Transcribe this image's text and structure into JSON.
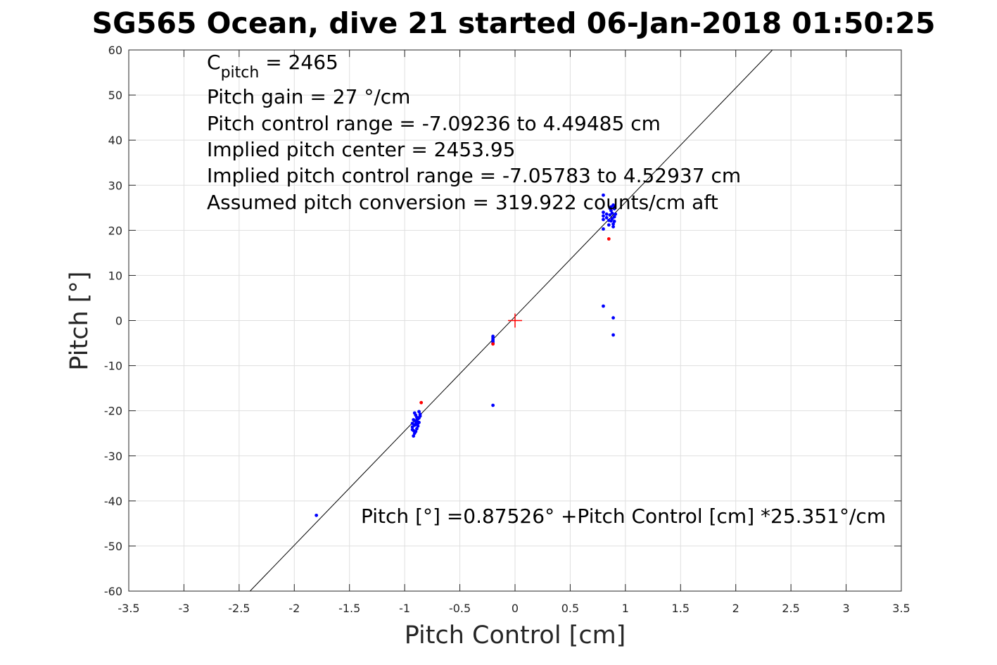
{
  "chart_data": {
    "type": "scatter",
    "title": "SG565 Ocean, dive 21 started 06-Jan-2018 01:50:25",
    "xlabel": "Pitch Control [cm]",
    "ylabel": "Pitch [°]",
    "xlim": [
      -3.5,
      3.5
    ],
    "ylim": [
      -60,
      60
    ],
    "xticks": [
      "-3.5",
      "-3",
      "-2.5",
      "-2",
      "-1.5",
      "-1",
      "-0.5",
      "0",
      "0.5",
      "1",
      "1.5",
      "2",
      "2.5",
      "3",
      "3.5"
    ],
    "yticks": [
      "60",
      "50",
      "40",
      "30",
      "20",
      "10",
      "0",
      "-10",
      "-20",
      "-30",
      "-40",
      "-50",
      "-60"
    ],
    "grid": true,
    "annotations": {
      "cpitch_main": "C",
      "cpitch_sub": "pitch",
      "cpitch_value": " = 2465",
      "gain": "Pitch gain = 27 °/cm",
      "control_range": "Pitch control range = -7.09236 to 4.49485 cm",
      "implied_center": "Implied pitch center = 2453.95",
      "implied_range": "Implied pitch control range = -7.05783 to 4.52937 cm",
      "conversion": "Assumed pitch conversion = 319.922 counts/cm aft",
      "fit_equation": "Pitch [°] =0.87526° +Pitch Control [cm] *25.351°/cm"
    },
    "fit_line": {
      "intercept": 0.87526,
      "slope": 25.351,
      "color": "#000000"
    },
    "center_marker": {
      "x": 0,
      "y": 0,
      "color": "#ff0000"
    },
    "series": [
      {
        "color": "#0000ff",
        "points": [
          [
            -1.8,
            -43.2
          ],
          [
            -0.2,
            -18.8
          ],
          [
            -0.2,
            -3.5
          ],
          [
            -0.2,
            -3.9
          ],
          [
            -0.2,
            -4.3
          ],
          [
            -0.2,
            -4.7
          ],
          [
            -0.2,
            -5.1
          ],
          [
            0.8,
            3.2
          ],
          [
            0.89,
            0.6
          ],
          [
            0.89,
            -3.2
          ],
          [
            -0.91,
            -20.5
          ],
          [
            -0.9,
            -21.0
          ],
          [
            -0.89,
            -21.5
          ],
          [
            -0.92,
            -22.0
          ],
          [
            -0.9,
            -22.4
          ],
          [
            -0.88,
            -22.8
          ],
          [
            -0.91,
            -23.2
          ],
          [
            -0.93,
            -23.6
          ],
          [
            -0.89,
            -24.0
          ],
          [
            -0.92,
            -24.4
          ],
          [
            -0.91,
            -25.0
          ],
          [
            -0.92,
            -25.6
          ],
          [
            -0.87,
            -20.2
          ],
          [
            -0.86,
            -21.2
          ],
          [
            -0.88,
            -21.8
          ],
          [
            -0.87,
            -22.6
          ],
          [
            -0.9,
            -23.0
          ],
          [
            -0.93,
            -22.8
          ],
          [
            -0.89,
            -22.2
          ],
          [
            -0.86,
            -20.8
          ],
          [
            -0.9,
            -24.6
          ],
          [
            -0.93,
            -24.2
          ],
          [
            -0.88,
            -23.4
          ],
          [
            -0.87,
            -21.6
          ],
          [
            0.8,
            27.8
          ],
          [
            0.8,
            24.0
          ],
          [
            0.8,
            23.2
          ],
          [
            0.8,
            22.4
          ],
          [
            0.8,
            20.3
          ],
          [
            0.83,
            22.8
          ],
          [
            0.83,
            23.6
          ],
          [
            0.85,
            22.2
          ],
          [
            0.86,
            23.4
          ],
          [
            0.87,
            24.4
          ],
          [
            0.87,
            25.2
          ],
          [
            0.88,
            22.6
          ],
          [
            0.88,
            23.8
          ],
          [
            0.89,
            25.6
          ],
          [
            0.89,
            21.4
          ],
          [
            0.89,
            20.8
          ],
          [
            0.9,
            24.8
          ],
          [
            0.9,
            22.0
          ],
          [
            0.9,
            23.0
          ],
          [
            0.9,
            25.3
          ],
          [
            0.91,
            23.6
          ],
          [
            0.85,
            21.2
          ],
          [
            0.87,
            22.1
          ],
          [
            0.86,
            24.9
          ]
        ]
      },
      {
        "color": "#ff0000",
        "points": [
          [
            -0.85,
            -18.2
          ],
          [
            -0.2,
            -5.2
          ],
          [
            0.85,
            18.1
          ]
        ]
      }
    ]
  }
}
